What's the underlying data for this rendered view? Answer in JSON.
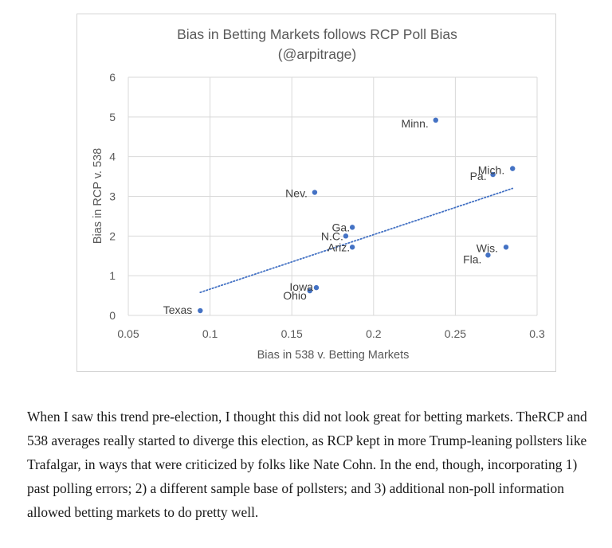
{
  "chart_data": {
    "type": "scatter",
    "title": "Bias in Betting Markets follows RCP Poll Bias",
    "subtitle": "(@arpitrage)",
    "xlabel": "Bias in 538 v. Betting Markets",
    "ylabel": "Bias in RCP v. 538",
    "xlim": [
      0.05,
      0.3
    ],
    "ylim": [
      0,
      6
    ],
    "x_ticks": [
      "0.05",
      "0.1",
      "0.15",
      "0.2",
      "0.25",
      "0.3"
    ],
    "y_ticks": [
      "0",
      "1",
      "2",
      "3",
      "4",
      "5",
      "6"
    ],
    "grid": true,
    "point_color": "#4472c4",
    "trendline": {
      "style": "dotted",
      "from": [
        0.094,
        0.58
      ],
      "to": [
        0.285,
        3.2
      ]
    },
    "points": [
      {
        "label": "Texas",
        "x": 0.094,
        "y": 0.12
      },
      {
        "label": "Iowa",
        "x": 0.165,
        "y": 0.7
      },
      {
        "label": "Ohio",
        "x": 0.161,
        "y": 0.62
      },
      {
        "label": "Ariz.",
        "x": 0.187,
        "y": 1.72
      },
      {
        "label": "N.C.",
        "x": 0.183,
        "y": 2.0
      },
      {
        "label": "Ga.",
        "x": 0.187,
        "y": 2.22
      },
      {
        "label": "Nev.",
        "x": 0.164,
        "y": 3.1
      },
      {
        "label": "Minn.",
        "x": 0.238,
        "y": 4.92
      },
      {
        "label": "Mich.",
        "x": 0.285,
        "y": 3.7
      },
      {
        "label": "Pa.",
        "x": 0.273,
        "y": 3.55
      },
      {
        "label": "Wis.",
        "x": 0.281,
        "y": 1.72
      },
      {
        "label": "Fla.",
        "x": 0.27,
        "y": 1.52
      }
    ]
  },
  "caption": "When I saw this trend pre-election, I thought this did not look great for betting markets. TheRCP and 538 averages really started to diverge this election, as RCP kept in more Trump-leaning pollsters like Trafalgar, in ways that were criticized by folks like Nate Cohn. In the end, though, incorporating 1) past polling errors; 2) a different sample base of pollsters; and 3) additional non-poll information allowed betting markets to do pretty well."
}
